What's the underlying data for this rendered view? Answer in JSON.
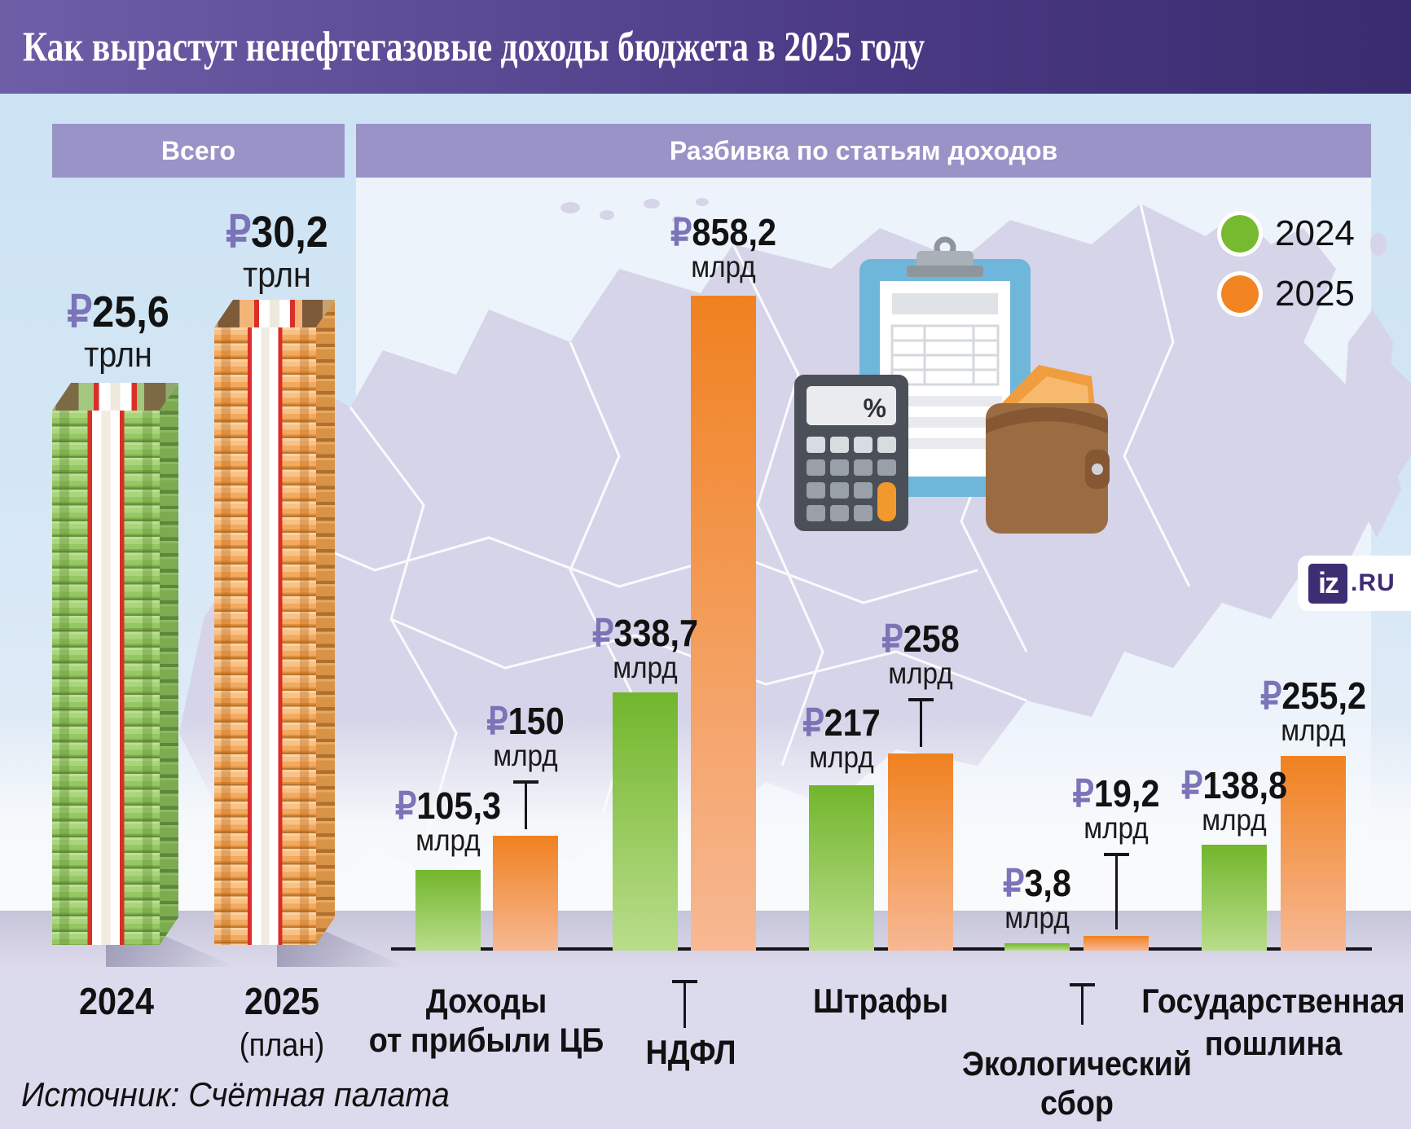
{
  "title": "Как вырастут ненефтегазовые доходы бюджета в 2025 году",
  "currency": "₽",
  "sections": {
    "total": {
      "header": "Всего",
      "items": [
        {
          "year_label": "2024",
          "plan_note": "",
          "value": "25,6",
          "unit": "трлн"
        },
        {
          "year_label": "2025",
          "plan_note": "(план)",
          "value": "30,2",
          "unit": "трлн"
        }
      ]
    },
    "breakdown": {
      "header": "Разбивка по статьям доходов",
      "unit": "млрд",
      "legend": [
        {
          "label": "2024",
          "color": "#76ba30"
        },
        {
          "label": "2025",
          "color": "#f28522"
        }
      ],
      "categories": [
        {
          "name_lines": [
            "Доходы",
            "от прибыли ЦБ"
          ],
          "v2024": "105,3",
          "v2025": "150"
        },
        {
          "name_lines": [
            "НДФЛ"
          ],
          "v2024": "338,7",
          "v2025": "858,2"
        },
        {
          "name_lines": [
            "Штрафы"
          ],
          "v2024": "217",
          "v2025": "258"
        },
        {
          "name_lines": [
            "Экологический",
            "сбор"
          ],
          "v2024": "3,8",
          "v2025": "19,2"
        },
        {
          "name_lines": [
            "Государственная",
            "пошлина"
          ],
          "v2024": "138,8",
          "v2025": "255,2"
        }
      ]
    }
  },
  "illustration": {
    "items": [
      "calculator",
      "clipboard",
      "wallet"
    ],
    "percent_symbol": "%"
  },
  "logo": {
    "iz": "iz",
    "ru": ".RU"
  },
  "source": "Источник: Счётная палата",
  "colors": {
    "bar_2024": "#76ba30",
    "bar_2025": "#f28522",
    "ruble_sign": "#7b74b8",
    "header_pill": "#9a93c7",
    "title_gradient": [
      "#6e5ea7",
      "#3a2b6f"
    ]
  },
  "chart_data": [
    {
      "type": "bar",
      "title": "Всего",
      "unit": "трлн ₽",
      "categories": [
        "2024",
        "2025 (план)"
      ],
      "values": [
        25.6,
        30.2
      ]
    },
    {
      "type": "bar",
      "title": "Разбивка по статьям доходов",
      "unit": "млрд ₽",
      "categories": [
        "Доходы от прибыли ЦБ",
        "НДФЛ",
        "Штрафы",
        "Экологический сбор",
        "Государственная пошлина"
      ],
      "series": [
        {
          "name": "2024",
          "values": [
            105.3,
            338.7,
            217,
            3.8,
            138.8
          ]
        },
        {
          "name": "2025",
          "values": [
            150,
            858.2,
            258,
            19.2,
            255.2
          ]
        }
      ],
      "legend_position": "top-right",
      "grid": false
    }
  ]
}
